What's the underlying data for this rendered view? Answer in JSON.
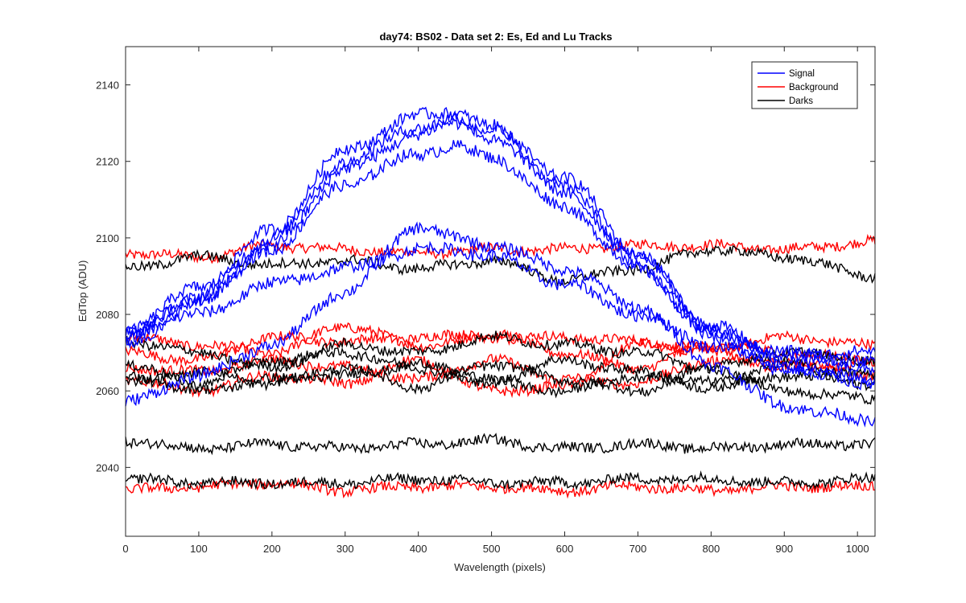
{
  "chart_data": {
    "type": "line",
    "title": "day74: BS02 - Data set 2: Es, Ed and Lu Tracks",
    "xlabel": "Wavelength (pixels)",
    "ylabel": "EdTop (ADU)",
    "xlim": [
      0,
      1024
    ],
    "ylim": [
      2022,
      2150
    ],
    "xticks": [
      0,
      100,
      200,
      300,
      400,
      500,
      600,
      700,
      800,
      900,
      1000
    ],
    "xtick_labels": [
      "0",
      "100",
      "200",
      "300",
      "400",
      "500",
      "600",
      "700",
      "800",
      "900",
      "1000"
    ],
    "yticks": [
      2040,
      2060,
      2080,
      2100,
      2120,
      2140
    ],
    "ytick_labels": [
      "2040",
      "2060",
      "2080",
      "2100",
      "2120",
      "2140"
    ],
    "grid": false,
    "legend_position": "top-right",
    "legend": [
      {
        "label": "Signal",
        "color": "#0000ff"
      },
      {
        "label": "Background",
        "color": "#ff0000"
      },
      {
        "label": "Darks",
        "color": "#000000"
      }
    ],
    "series": [
      {
        "group": "Signal",
        "color": "#0000ff",
        "x": [
          0,
          100,
          200,
          300,
          400,
          450,
          500,
          600,
          700,
          800,
          900,
          1024
        ],
        "y": [
          2074,
          2085,
          2100,
          2120,
          2129,
          2131,
          2126,
          2112,
          2093,
          2074,
          2066,
          2063
        ]
      },
      {
        "group": "Signal",
        "color": "#0000ff",
        "x": [
          0,
          100,
          200,
          300,
          400,
          450,
          500,
          600,
          700,
          800,
          900,
          1024
        ],
        "y": [
          2072,
          2083,
          2098,
          2118,
          2127,
          2130,
          2128,
          2116,
          2096,
          2076,
          2068,
          2066
        ]
      },
      {
        "group": "Signal",
        "color": "#0000ff",
        "x": [
          0,
          100,
          200,
          300,
          400,
          450,
          500,
          600,
          700,
          800,
          900,
          1024
        ],
        "y": [
          2076,
          2087,
          2102,
          2123,
          2132,
          2133,
          2129,
          2113,
          2095,
          2077,
          2069,
          2068
        ]
      },
      {
        "group": "Signal",
        "color": "#0000ff",
        "x": [
          0,
          100,
          200,
          300,
          400,
          450,
          500,
          600,
          700,
          800,
          900,
          1024
        ],
        "y": [
          2074,
          2084,
          2097,
          2114,
          2122,
          2124,
          2121,
          2108,
          2092,
          2075,
          2070,
          2070
        ]
      },
      {
        "group": "Signal",
        "color": "#0000ff",
        "x": [
          0,
          100,
          200,
          300,
          400,
          450,
          500,
          600,
          700,
          800,
          900,
          1024
        ],
        "y": [
          2057,
          2064,
          2072,
          2086,
          2103,
          2100,
          2098,
          2092,
          2082,
          2067,
          2056,
          2052
        ]
      },
      {
        "group": "Signal",
        "color": "#0000ff",
        "x": [
          0,
          100,
          200,
          300,
          400,
          450,
          500,
          600,
          700,
          800,
          900,
          1024
        ],
        "y": [
          2075,
          2080,
          2088,
          2092,
          2097,
          2097,
          2095,
          2088,
          2080,
          2072,
          2066,
          2062
        ]
      },
      {
        "group": "Background",
        "color": "#ff0000",
        "x": [
          0,
          100,
          200,
          300,
          400,
          500,
          600,
          700,
          800,
          900,
          1024
        ],
        "y": [
          2096,
          2095,
          2098,
          2097,
          2096,
          2097,
          2097,
          2098,
          2098,
          2097,
          2099
        ]
      },
      {
        "group": "Background",
        "color": "#ff0000",
        "x": [
          0,
          100,
          200,
          300,
          400,
          500,
          600,
          700,
          800,
          900,
          1024
        ],
        "y": [
          2074,
          2072,
          2070,
          2077,
          2072,
          2074,
          2074,
          2073,
          2071,
          2074,
          2072
        ]
      },
      {
        "group": "Background",
        "color": "#ff0000",
        "x": [
          0,
          100,
          200,
          300,
          400,
          500,
          600,
          700,
          800,
          900,
          1024
        ],
        "y": [
          2070,
          2068,
          2074,
          2073,
          2074,
          2075,
          2070,
          2066,
          2072,
          2070,
          2068
        ]
      },
      {
        "group": "Background",
        "color": "#ff0000",
        "x": [
          0,
          100,
          200,
          300,
          400,
          500,
          600,
          700,
          800,
          900,
          1024
        ],
        "y": [
          2066,
          2065,
          2068,
          2066,
          2063,
          2068,
          2063,
          2062,
          2068,
          2068,
          2064
        ]
      },
      {
        "group": "Background",
        "color": "#ff0000",
        "x": [
          0,
          100,
          200,
          300,
          400,
          500,
          600,
          700,
          800,
          900,
          1024
        ],
        "y": [
          2063,
          2060,
          2064,
          2062,
          2068,
          2060,
          2061,
          2072,
          2070,
          2066,
          2067
        ]
      },
      {
        "group": "Background",
        "color": "#ff0000",
        "x": [
          0,
          100,
          200,
          300,
          400,
          500,
          600,
          700,
          800,
          900,
          1024
        ],
        "y": [
          2034,
          2035,
          2036,
          2034,
          2035,
          2035,
          2034,
          2035,
          2034,
          2035,
          2035
        ]
      },
      {
        "group": "Darks",
        "color": "#000000",
        "x": [
          0,
          100,
          200,
          300,
          400,
          500,
          600,
          700,
          800,
          900,
          1024
        ],
        "y": [
          2092,
          2095,
          2093,
          2094,
          2092,
          2094,
          2089,
          2092,
          2097,
          2095,
          2090
        ]
      },
      {
        "group": "Darks",
        "color": "#000000",
        "x": [
          0,
          100,
          200,
          300,
          400,
          500,
          600,
          700,
          800,
          900,
          1024
        ],
        "y": [
          2073,
          2070,
          2066,
          2072,
          2070,
          2074,
          2072,
          2070,
          2066,
          2070,
          2068
        ]
      },
      {
        "group": "Darks",
        "color": "#000000",
        "x": [
          0,
          100,
          200,
          300,
          400,
          500,
          600,
          700,
          800,
          900,
          1024
        ],
        "y": [
          2067,
          2062,
          2068,
          2070,
          2066,
          2063,
          2068,
          2065,
          2062,
          2067,
          2064
        ]
      },
      {
        "group": "Darks",
        "color": "#000000",
        "x": [
          0,
          100,
          200,
          300,
          400,
          500,
          600,
          700,
          800,
          900,
          1024
        ],
        "y": [
          2062,
          2065,
          2062,
          2066,
          2061,
          2067,
          2063,
          2060,
          2066,
          2060,
          2058
        ]
      },
      {
        "group": "Darks",
        "color": "#000000",
        "x": [
          0,
          100,
          200,
          300,
          400,
          500,
          600,
          700,
          800,
          900,
          1024
        ],
        "y": [
          2064,
          2060,
          2063,
          2064,
          2067,
          2062,
          2060,
          2064,
          2061,
          2064,
          2062
        ]
      },
      {
        "group": "Darks",
        "color": "#000000",
        "x": [
          0,
          100,
          200,
          300,
          400,
          500,
          600,
          700,
          800,
          900,
          1024
        ],
        "y": [
          2047,
          2045,
          2046,
          2045,
          2046,
          2047,
          2045,
          2046,
          2045,
          2046,
          2046
        ]
      },
      {
        "group": "Darks",
        "color": "#000000",
        "x": [
          0,
          100,
          200,
          300,
          400,
          500,
          600,
          700,
          800,
          900,
          1024
        ],
        "y": [
          2037,
          2036,
          2036,
          2036,
          2037,
          2036,
          2036,
          2037,
          2037,
          2036,
          2037
        ]
      }
    ]
  }
}
